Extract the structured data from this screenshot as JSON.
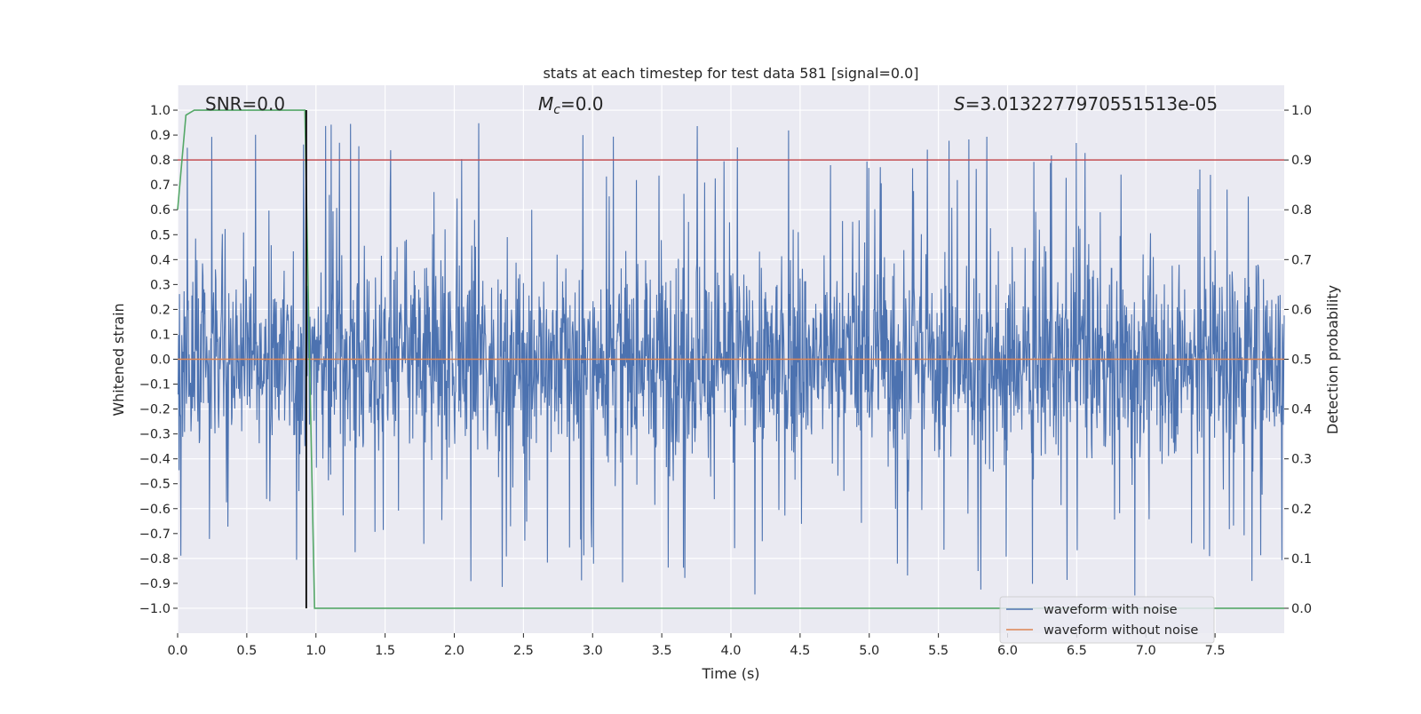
{
  "chart_data": {
    "type": "line",
    "title": "stats at each timestep for test data 581 [signal=0.0]",
    "xlabel": "Time (s)",
    "ylabel": "Whitened strain",
    "y2label": "Detection probability",
    "xlim": [
      0.0,
      8.0
    ],
    "ylim": [
      -1.1,
      1.1
    ],
    "y2lim": [
      -0.05,
      1.05
    ],
    "xticks": [
      "0.0",
      "0.5",
      "1.0",
      "1.5",
      "2.0",
      "2.5",
      "3.0",
      "3.5",
      "4.0",
      "4.5",
      "5.0",
      "5.5",
      "6.0",
      "6.5",
      "7.0",
      "7.5"
    ],
    "yticks": [
      "1.0",
      "0.9",
      "0.8",
      "0.7",
      "0.6",
      "0.5",
      "0.4",
      "0.3",
      "0.2",
      "0.1",
      "0.0",
      "−0.1",
      "−0.2",
      "−0.3",
      "−0.4",
      "−0.5",
      "−0.6",
      "−0.7",
      "−0.8",
      "−0.9",
      "−1.0"
    ],
    "y2ticks": [
      "1.0",
      "0.9",
      "0.8",
      "0.7",
      "0.6",
      "0.5",
      "0.4",
      "0.3",
      "0.2",
      "0.1",
      "0.0"
    ],
    "grid": true,
    "legend_position": "bottom-right",
    "annotations": {
      "snr": "SNR=0.0",
      "mc_symbol": "M",
      "mc_sub": "c",
      "mc_value": "=0.0",
      "s_symbol": "S",
      "s_value": "=3.0132277970551513e-05"
    },
    "series": [
      {
        "name": "waveform with noise",
        "color": "#4c72b0",
        "style": "dense noise, envelope approx ±0.5 with spikes to ±1.0"
      },
      {
        "name": "waveform without noise",
        "color": "#dd8452",
        "x": [
          0.0,
          8.0
        ],
        "y": [
          0.0,
          0.0
        ]
      }
    ],
    "detection_probability": {
      "color": "#55a868",
      "x": [
        0.0,
        0.06,
        0.12,
        0.5,
        0.92,
        0.95,
        0.99,
        8.0
      ],
      "y": [
        0.8,
        0.99,
        1.0,
        1.0,
        1.0,
        0.55,
        0.0,
        0.0
      ]
    },
    "threshold": {
      "color": "#c44e52",
      "y2": 0.9
    },
    "marker_line": {
      "color": "#000000",
      "x": 0.93,
      "y_range": [
        -1.0,
        1.0
      ]
    },
    "colors": {
      "background": "#eaeaf2",
      "grid": "#ffffff",
      "text": "#262626"
    }
  }
}
